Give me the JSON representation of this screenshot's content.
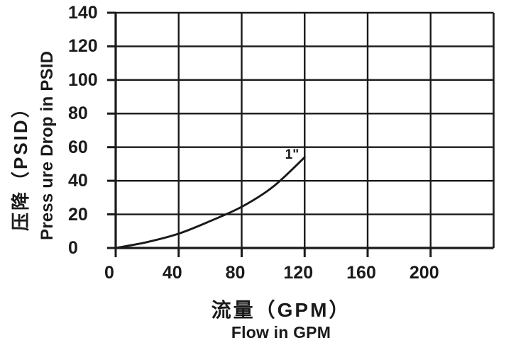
{
  "page": {
    "background": "#ffffff",
    "ink": "#1a1a1a"
  },
  "chart_data": {
    "type": "line",
    "grid": true,
    "legend": "none (inline label at end of curve)",
    "x_axis": {
      "title_zh": "流量（GPM）",
      "title_en": "Flow in GPM",
      "unit": "GPM",
      "ticks": [
        0,
        40,
        80,
        120,
        160,
        200
      ],
      "range": [
        0,
        240
      ]
    },
    "y_axis": {
      "title_zh": "压降（PSID）",
      "title_en": "Press ure Drop in PSID",
      "unit": "PSID",
      "ticks": [
        0,
        20,
        40,
        60,
        80,
        100,
        120,
        140
      ],
      "range": [
        0,
        140
      ]
    },
    "series": [
      {
        "name": "1\"",
        "label": "1\"",
        "x": [
          0,
          20,
          40,
          60,
          80,
          100,
          120
        ],
        "y": [
          0,
          3.5,
          8.5,
          16,
          24.5,
          36.5,
          54
        ]
      }
    ]
  }
}
